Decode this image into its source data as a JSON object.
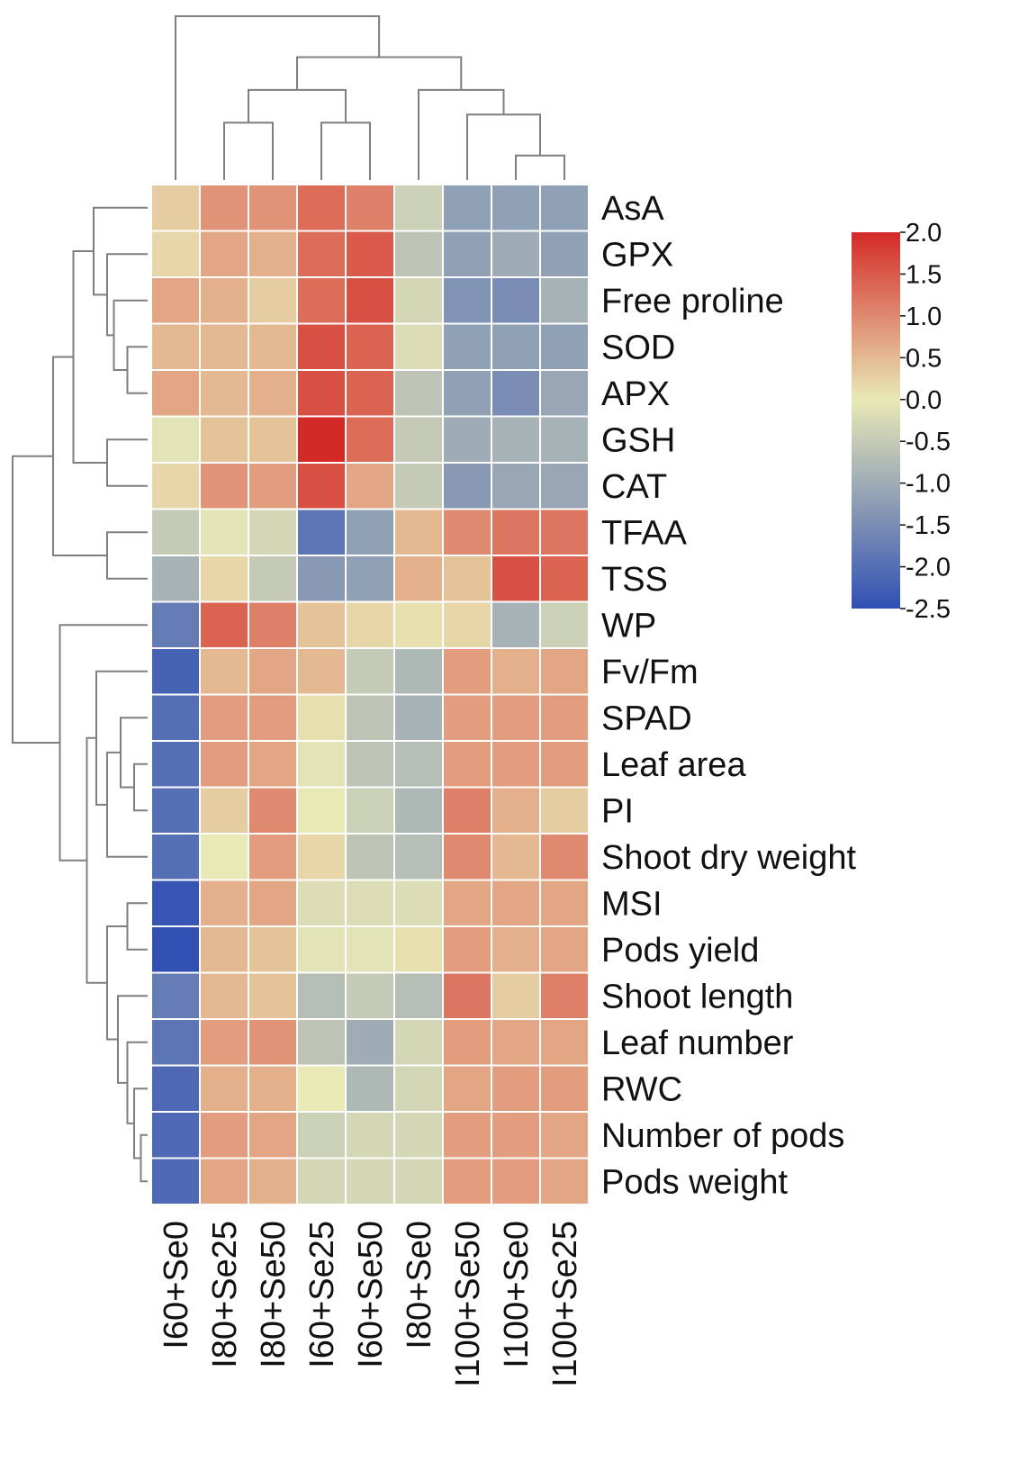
{
  "chart_data": {
    "type": "heatmap",
    "title": "",
    "columns": [
      "I60+Se0",
      "I80+Se25",
      "I80+Se50",
      "I60+Se25",
      "I60+Se50",
      "I80+Se0",
      "I100+Se50",
      "I100+Se0",
      "I100+Se25"
    ],
    "rows": [
      "AsA",
      "GPX",
      "Free proline",
      "SOD",
      "APX",
      "GSH",
      "CAT",
      "TFAA",
      "TSS",
      "WP",
      "Fv/Fm",
      "SPAD",
      "Leaf area",
      "PI",
      "Shoot dry weight",
      "MSI",
      "Pods yield",
      "Shoot length",
      "Leaf number",
      "RWC",
      "Number of pods",
      "Pods weight"
    ],
    "values": [
      [
        0.3,
        0.9,
        0.9,
        1.3,
        1.1,
        -0.4,
        -1.2,
        -1.2,
        -1.2
      ],
      [
        0.2,
        0.7,
        0.6,
        1.3,
        1.5,
        -0.6,
        -1.2,
        -1.0,
        -1.2
      ],
      [
        0.7,
        0.6,
        0.3,
        1.3,
        1.6,
        -0.3,
        -1.4,
        -1.5,
        -0.9
      ],
      [
        0.5,
        0.5,
        0.5,
        1.6,
        1.4,
        -0.2,
        -1.2,
        -1.2,
        -1.2
      ],
      [
        0.7,
        0.5,
        0.6,
        1.6,
        1.4,
        -0.6,
        -1.2,
        -1.5,
        -1.1
      ],
      [
        -0.1,
        0.4,
        0.4,
        2.0,
        1.3,
        -0.5,
        -1.0,
        -0.9,
        -0.9
      ],
      [
        0.2,
        0.9,
        0.8,
        1.6,
        0.7,
        -0.5,
        -1.3,
        -1.1,
        -1.1
      ],
      [
        -0.5,
        -0.1,
        -0.3,
        -1.9,
        -1.2,
        0.5,
        1.0,
        1.2,
        1.2
      ],
      [
        -0.9,
        0.2,
        -0.5,
        -1.3,
        -1.2,
        0.6,
        0.4,
        1.6,
        1.4
      ],
      [
        -1.8,
        1.4,
        1.1,
        0.4,
        0.2,
        0.1,
        0.2,
        -0.9,
        -0.4
      ],
      [
        -2.2,
        0.5,
        0.7,
        0.5,
        -0.5,
        -0.8,
        0.8,
        0.6,
        0.7
      ],
      [
        -2.0,
        0.8,
        0.8,
        0.1,
        -0.6,
        -0.9,
        0.8,
        0.8,
        0.8
      ],
      [
        -2.0,
        0.8,
        0.7,
        -0.1,
        -0.6,
        -0.7,
        0.8,
        0.8,
        0.8
      ],
      [
        -2.0,
        0.3,
        1.0,
        0.0,
        -0.4,
        -0.8,
        1.1,
        0.6,
        0.3
      ],
      [
        -2.0,
        0.0,
        0.8,
        0.2,
        -0.6,
        -0.7,
        1.0,
        0.5,
        1.0
      ],
      [
        -2.4,
        0.6,
        0.7,
        -0.2,
        -0.2,
        -0.2,
        0.7,
        0.7,
        0.7
      ],
      [
        -2.5,
        0.5,
        0.4,
        -0.1,
        -0.1,
        0.1,
        0.8,
        0.6,
        0.7
      ],
      [
        -1.8,
        0.5,
        0.4,
        -0.7,
        -0.5,
        -0.7,
        1.2,
        0.3,
        1.1
      ],
      [
        -1.9,
        0.8,
        0.9,
        -0.6,
        -1.0,
        -0.3,
        0.8,
        0.7,
        0.7
      ],
      [
        -2.1,
        0.6,
        0.6,
        0.0,
        -0.8,
        -0.3,
        0.7,
        0.8,
        0.8
      ],
      [
        -2.1,
        0.8,
        0.7,
        -0.4,
        -0.3,
        -0.3,
        0.8,
        0.8,
        0.7
      ],
      [
        -2.1,
        0.7,
        0.6,
        -0.3,
        -0.3,
        -0.3,
        0.8,
        0.8,
        0.7
      ]
    ],
    "color_scale": {
      "min": -2.5,
      "max": 2.0,
      "colors": [
        "#3050b3",
        "#e9e9b6",
        "#d42a27"
      ],
      "ticks": [
        "2.0",
        "1.5",
        "1.0",
        "0.5",
        "0.0",
        "-0.5",
        "-1.0",
        "-1.5",
        "-2.0",
        "-2.5"
      ],
      "tick_values": [
        2.0,
        1.5,
        1.0,
        0.5,
        0.0,
        -0.5,
        -1.0,
        -1.5,
        -2.0,
        -2.5
      ]
    },
    "column_dendrogram": [
      {
        "id": "c1",
        "a": 1,
        "b": 2,
        "h": 0.35
      },
      {
        "id": "c2",
        "a": 3,
        "b": 4,
        "h": 0.35
      },
      {
        "id": "c3",
        "a": 7,
        "b": 8,
        "h": 0.15
      },
      {
        "id": "c4",
        "a": 6,
        "b": "c3",
        "h": 0.4
      },
      {
        "id": "c5",
        "a": "c1",
        "b": "c2",
        "h": 0.55
      },
      {
        "id": "c6",
        "a": 5,
        "b": "c4",
        "h": 0.55
      },
      {
        "id": "c7",
        "a": "c5",
        "b": "c6",
        "h": 0.75
      },
      {
        "id": "c8",
        "a": 0,
        "b": "c7",
        "h": 1.0
      }
    ],
    "row_dendrogram": [
      {
        "id": "r1",
        "a": 3,
        "b": 4,
        "h": 0.15
      },
      {
        "id": "r2",
        "a": 2,
        "b": "r1",
        "h": 0.25
      },
      {
        "id": "r3",
        "a": 1,
        "b": "r2",
        "h": 0.3
      },
      {
        "id": "r4",
        "a": 0,
        "b": "r3",
        "h": 0.4
      },
      {
        "id": "r5",
        "a": 5,
        "b": 6,
        "h": 0.3
      },
      {
        "id": "r6",
        "a": "r4",
        "b": "r5",
        "h": 0.55
      },
      {
        "id": "r7",
        "a": 7,
        "b": 8,
        "h": 0.3
      },
      {
        "id": "r8",
        "a": "r6",
        "b": "r7",
        "h": 0.7
      },
      {
        "id": "r9",
        "a": 12,
        "b": 13,
        "h": 0.1
      },
      {
        "id": "r10",
        "a": 11,
        "b": "r9",
        "h": 0.2
      },
      {
        "id": "r11",
        "a": "r10",
        "b": 14,
        "h": 0.3
      },
      {
        "id": "r12",
        "a": 10,
        "b": "r11",
        "h": 0.38
      },
      {
        "id": "r13",
        "a": 15,
        "b": 16,
        "h": 0.15
      },
      {
        "id": "r14",
        "a": 20,
        "b": 21,
        "h": 0.05
      },
      {
        "id": "r15",
        "a": 19,
        "b": "r14",
        "h": 0.1
      },
      {
        "id": "r16",
        "a": 18,
        "b": "r15",
        "h": 0.15
      },
      {
        "id": "r17",
        "a": 17,
        "b": "r16",
        "h": 0.22
      },
      {
        "id": "r18",
        "a": "r13",
        "b": "r17",
        "h": 0.3
      },
      {
        "id": "r19",
        "a": "r12",
        "b": "r18",
        "h": 0.45
      },
      {
        "id": "r20",
        "a": 9,
        "b": "r19",
        "h": 0.65
      },
      {
        "id": "r21",
        "a": "r8",
        "b": "r20",
        "h": 1.0
      }
    ]
  }
}
